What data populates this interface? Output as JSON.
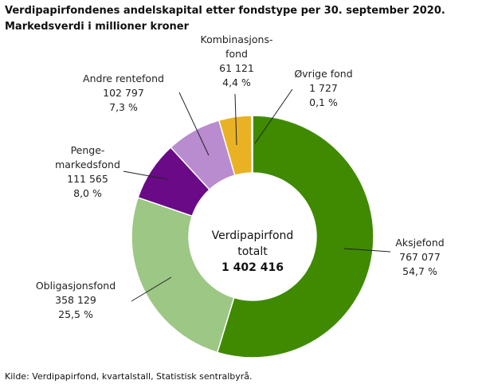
{
  "chart_data": {
    "type": "pie",
    "title": "Verdipapirfondenes  andelskapital  etter fondstype per 30. september 2020.",
    "subtitle": "Markedsverdi i millioner kroner",
    "categories": [
      "Aksjefond",
      "Obligasjonsfond",
      "Penge-\nmarkedsfond",
      "Andre rentefond",
      "Kombinasjons-\nfond",
      "Øvrige fond"
    ],
    "values": [
      767077,
      358129,
      111565,
      102797,
      61121,
      1727
    ],
    "value_labels": [
      "767 077",
      "358 129",
      "111 565",
      "102 797",
      "61 121",
      "1 727"
    ],
    "percent_labels": [
      "54,7 %",
      "25,5 %",
      "8,0 %",
      "7,3 %",
      "4,4 %",
      "0,1 %"
    ],
    "colors": [
      "#3f8a00",
      "#9dc784",
      "#6a0a87",
      "#b98bcf",
      "#e8b224",
      "#2f6f5f"
    ],
    "center_label": "Verdipapirfond\ntotalt",
    "total": {
      "value": 1402416,
      "label": "1 402 416"
    },
    "source": "Kilde: Verdipapirfond, kvartalstall, Statistisk sentralbyrå."
  }
}
